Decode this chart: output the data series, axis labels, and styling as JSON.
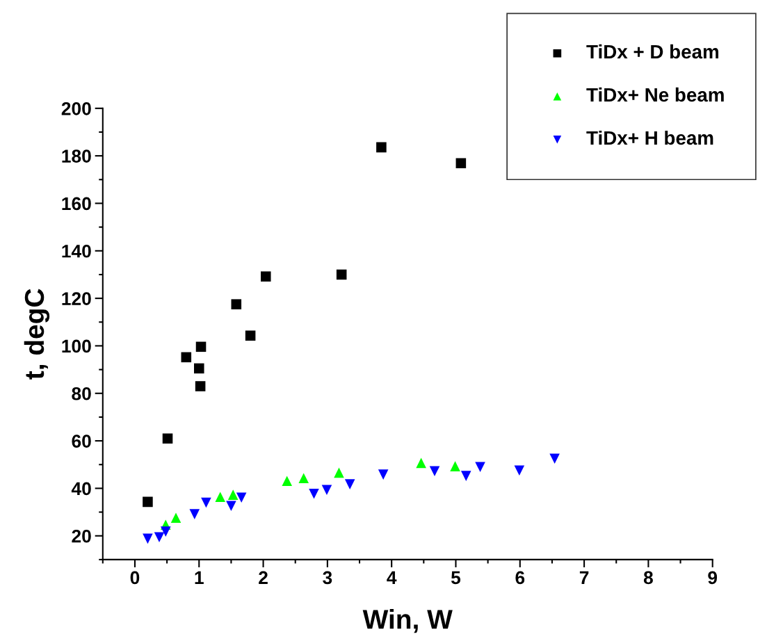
{
  "chart_data": {
    "type": "scatter",
    "xlabel": "Win, W",
    "ylabel": "t, degC",
    "xlim": [
      -0.5,
      9
    ],
    "xticks": [
      0,
      1,
      2,
      3,
      4,
      5,
      6,
      7,
      8,
      9
    ],
    "ylim": [
      10,
      200
    ],
    "yticks": [
      20,
      40,
      60,
      80,
      100,
      120,
      140,
      160,
      180,
      200
    ],
    "grid": false,
    "legend": "top right",
    "series": [
      {
        "name": "TiDx + D beam",
        "color": "#000000",
        "marker": "square",
        "x": [
          0.2,
          0.51,
          0.8,
          1.03,
          1.0,
          1.02,
          1.58,
          1.8,
          2.04,
          3.22,
          3.84,
          5.08
        ],
        "values": [
          34.3,
          61,
          95.2,
          99.6,
          90.5,
          83,
          117.5,
          104.3,
          129.2,
          130,
          183.6,
          176.9
        ]
      },
      {
        "name": "TiDx+ Ne beam",
        "color": "#00ff00",
        "marker": "triangle",
        "x": [
          0.48,
          0.64,
          1.33,
          1.53,
          2.37,
          2.63,
          3.18,
          4.46,
          4.99
        ],
        "values": [
          24.7,
          27.6,
          36.4,
          37.3,
          43.1,
          44.3,
          46.6,
          50.7,
          49.3
        ]
      },
      {
        "name": "TiDx+ H beam",
        "color": "#0000ff",
        "marker": "triangle_down",
        "x": [
          0.2,
          0.38,
          0.48,
          0.93,
          1.11,
          1.5,
          1.66,
          2.79,
          2.99,
          3.35,
          3.87,
          4.67,
          5.16,
          5.38,
          5.99,
          6.54
        ],
        "values": [
          18.8,
          19.4,
          21.8,
          29.1,
          34.0,
          32.6,
          36.1,
          37.7,
          39.3,
          41.7,
          45.8,
          47.2,
          45.2,
          49,
          47.5,
          52.5
        ]
      }
    ]
  }
}
